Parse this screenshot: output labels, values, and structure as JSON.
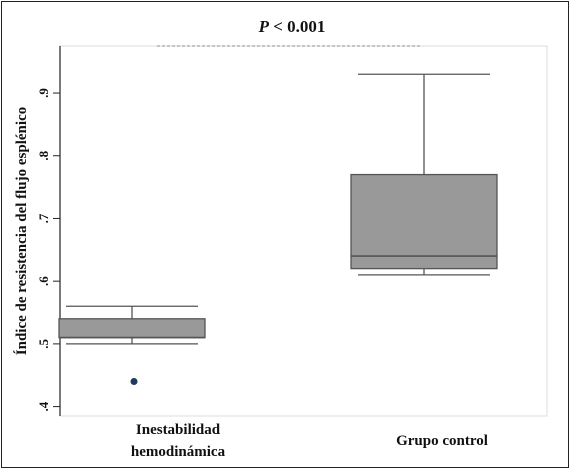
{
  "chart_data": {
    "type": "boxplot",
    "annotation": {
      "italic": "P",
      "rest": " < 0.001"
    },
    "ylabel": "Índice de resistencia del flujo esplénico",
    "ylim": [
      0.385,
      0.975
    ],
    "yticks": [
      {
        "value": 0.4,
        "label": ".4"
      },
      {
        "value": 0.5,
        "label": ".5"
      },
      {
        "value": 0.6,
        "label": ".6"
      },
      {
        "value": 0.7,
        "label": ".7"
      },
      {
        "value": 0.8,
        "label": ".8"
      },
      {
        "value": 0.9,
        "label": ".9"
      }
    ],
    "grid": false,
    "categories": [
      {
        "lines": [
          "Inestabilidad",
          "hemodinámica"
        ]
      },
      {
        "lines": [
          "Grupo control"
        ]
      }
    ],
    "boxes": [
      {
        "whisker_low": 0.5,
        "q1": 0.51,
        "median": 0.51,
        "q3": 0.54,
        "whisker_high": 0.56,
        "outliers": [
          0.44
        ]
      },
      {
        "whisker_low": 0.61,
        "q1": 0.62,
        "median": 0.64,
        "q3": 0.77,
        "whisker_high": 0.93,
        "outliers": []
      }
    ],
    "colors": {
      "box_fill": "#999999",
      "box_stroke": "#555555",
      "outlier": "#1f3a5f",
      "bracket": "#b0b0b0",
      "axis": "#222222"
    }
  }
}
